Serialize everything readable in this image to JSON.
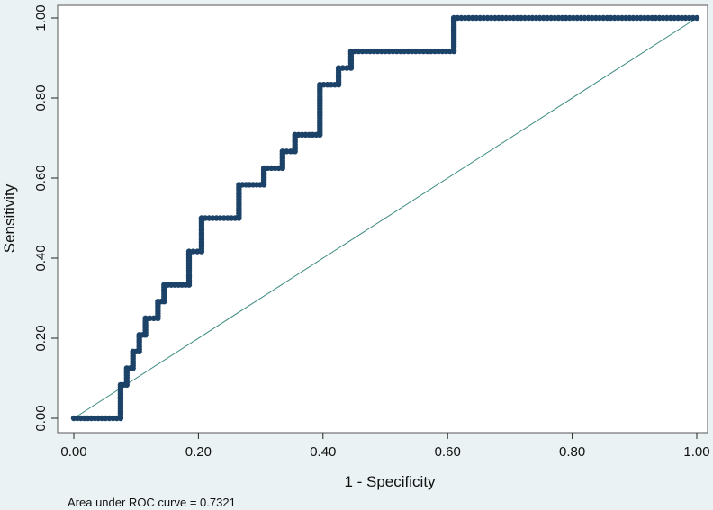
{
  "chart_data": {
    "type": "line",
    "xlabel": "1 - Specificity",
    "ylabel": "Sensitivity",
    "xlim": [
      0,
      1
    ],
    "ylim": [
      0,
      1
    ],
    "x_ticks": [
      "0.00",
      "0.20",
      "0.40",
      "0.60",
      "0.80",
      "1.00"
    ],
    "y_ticks": [
      "0.00",
      "0.20",
      "0.40",
      "0.60",
      "0.80",
      "1.00"
    ],
    "grid": false,
    "legend": "none",
    "note": "Area under ROC curve = 0.7321",
    "colors": {
      "curve": "#1c4268",
      "reference": "#3a8a7f",
      "plot_background": "#ffffff",
      "outer_background": "#eaf2f3"
    },
    "series": [
      {
        "kind": "roc",
        "x": [
          0,
          0.045,
          0.075,
          0.075,
          0.085,
          0.085,
          0.095,
          0.095,
          0.105,
          0.105,
          0.115,
          0.115,
          0.135,
          0.135,
          0.145,
          0.145,
          0.185,
          0.185,
          0.205,
          0.205,
          0.265,
          0.265,
          0.305,
          0.305,
          0.335,
          0.335,
          0.355,
          0.355,
          0.395,
          0.395,
          0.425,
          0.425,
          0.445,
          0.445,
          0.61,
          0.61,
          1.0
        ],
        "y": [
          0,
          0,
          0,
          0.0833,
          0.0833,
          0.125,
          0.125,
          0.1667,
          0.1667,
          0.2083,
          0.2083,
          0.25,
          0.25,
          0.2917,
          0.2917,
          0.3333,
          0.3333,
          0.4167,
          0.4167,
          0.5,
          0.5,
          0.5833,
          0.5833,
          0.625,
          0.625,
          0.6667,
          0.6667,
          0.7083,
          0.7083,
          0.8333,
          0.8333,
          0.875,
          0.875,
          0.9167,
          0.9167,
          1.0,
          1.0
        ]
      },
      {
        "kind": "reference",
        "x": [
          0,
          1
        ],
        "y": [
          0,
          1
        ]
      }
    ]
  }
}
